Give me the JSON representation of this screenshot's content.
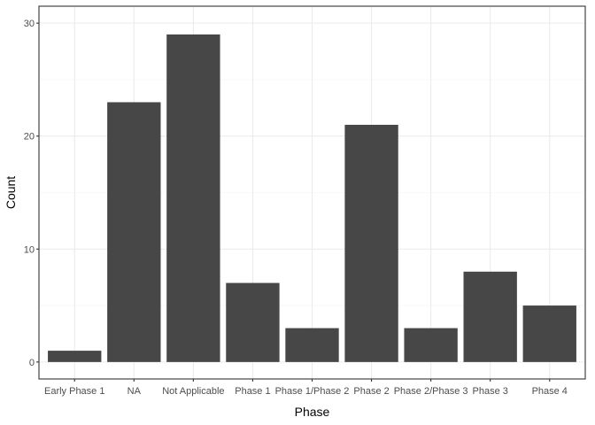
{
  "chart_data": {
    "type": "bar",
    "title": "",
    "xlabel": "Phase",
    "ylabel": "Count",
    "categories": [
      "Early Phase 1",
      "NA",
      "Not Applicable",
      "Phase 1",
      "Phase 1/Phase 2",
      "Phase 2",
      "Phase 2/Phase 3",
      "Phase 3",
      "Phase 4"
    ],
    "values": [
      1,
      23,
      29,
      7,
      3,
      21,
      3,
      8,
      5
    ],
    "ylim": [
      0,
      30
    ],
    "yticks": [
      0,
      10,
      20,
      30
    ],
    "grid": true,
    "legend": "none",
    "colors": {
      "bar": "#474747",
      "grid_major": "#ebebeb",
      "grid_minor": "#f4f4f4",
      "panel_border": "#333333",
      "background": "#ffffff"
    }
  }
}
